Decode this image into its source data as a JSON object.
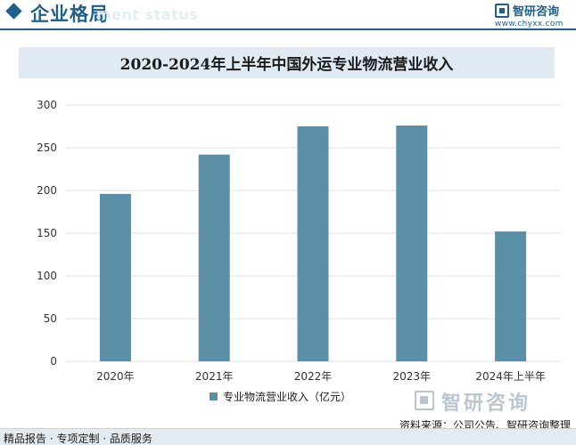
{
  "header": {
    "title": "企业格局",
    "ghost_text": "ment status",
    "logo_text": "智研咨询",
    "logo_url": "www.chyxx.com"
  },
  "chart_data": {
    "type": "bar",
    "title": "2020-2024年上半年中国外运专业物流营业收入",
    "categories": [
      "2020年",
      "2021年",
      "2022年",
      "2023年",
      "2024年上半年"
    ],
    "series": [
      {
        "name": "专业物流营业收入（亿元）",
        "values": [
          196,
          242,
          275,
          276,
          152
        ]
      }
    ],
    "ylim": [
      0,
      300
    ],
    "yticks": [
      0,
      50,
      100,
      150,
      200,
      250,
      300
    ],
    "grid": true,
    "legend": "bottom",
    "bar_color": "#5b8fa8",
    "grid_color": "#dde3e7"
  },
  "footer": {
    "logo_text": "智研咨询",
    "source": "资料来源：公司公告、智研咨询整理",
    "services": "精品报告 · 专项定制 · 品质服务"
  }
}
